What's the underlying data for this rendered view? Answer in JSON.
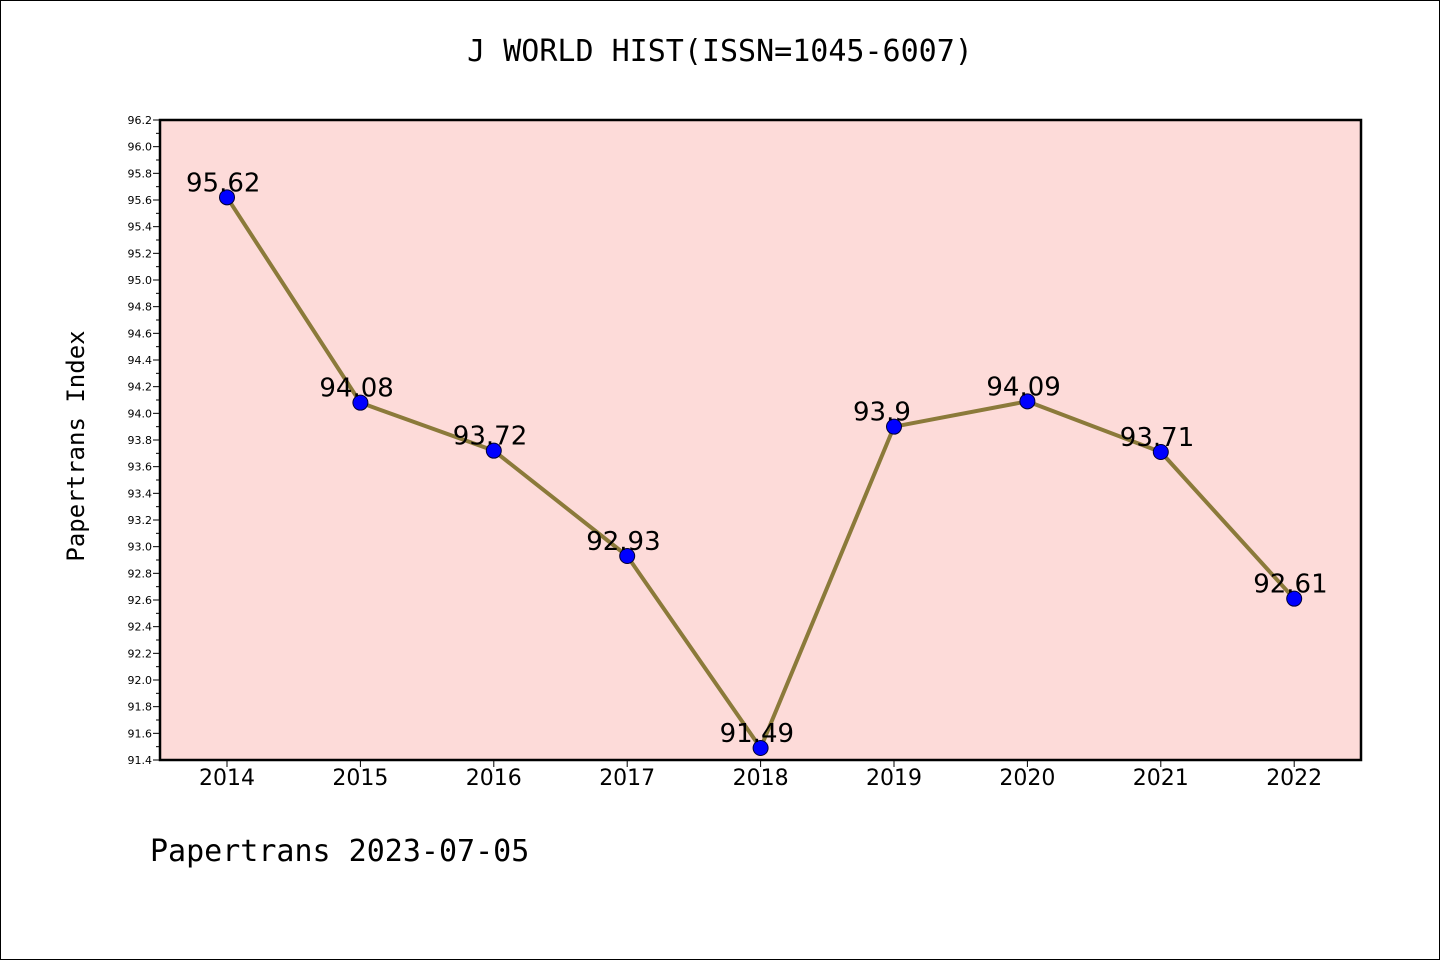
{
  "title": "J WORLD HIST(ISSN=1045-6007)",
  "ylabel": "Papertrans Index",
  "footer": "Papertrans 2023-07-05",
  "colors": {
    "plot_background": "#fddbd9",
    "line": "#8b7a3a",
    "marker": "#0000ff"
  },
  "chart_data": {
    "type": "line",
    "title": "J WORLD HIST(ISSN=1045-6007)",
    "xlabel": "",
    "ylabel": "Papertrans Index",
    "categories": [
      "2014",
      "2015",
      "2016",
      "2017",
      "2018",
      "2019",
      "2020",
      "2021",
      "2022"
    ],
    "values": [
      95.62,
      94.08,
      93.72,
      92.93,
      91.49,
      93.9,
      94.09,
      93.71,
      92.61
    ],
    "data_labels": [
      "95.62",
      "94.08",
      "93.72",
      "92.93",
      "91.49",
      "93.9",
      "94.09",
      "93.71",
      "92.61"
    ],
    "ylim": [
      91.4,
      96.2
    ],
    "yticks": [
      "91.4",
      "91.6",
      "91.8",
      "92.0",
      "92.2",
      "92.4",
      "92.6",
      "92.8",
      "93.0",
      "93.2",
      "93.4",
      "93.6",
      "93.8",
      "94.0",
      "94.2",
      "94.4",
      "94.6",
      "94.8",
      "95.0",
      "95.2",
      "95.4",
      "95.6",
      "95.8",
      "96.0",
      "96.2"
    ],
    "grid": false,
    "legend": "none"
  }
}
